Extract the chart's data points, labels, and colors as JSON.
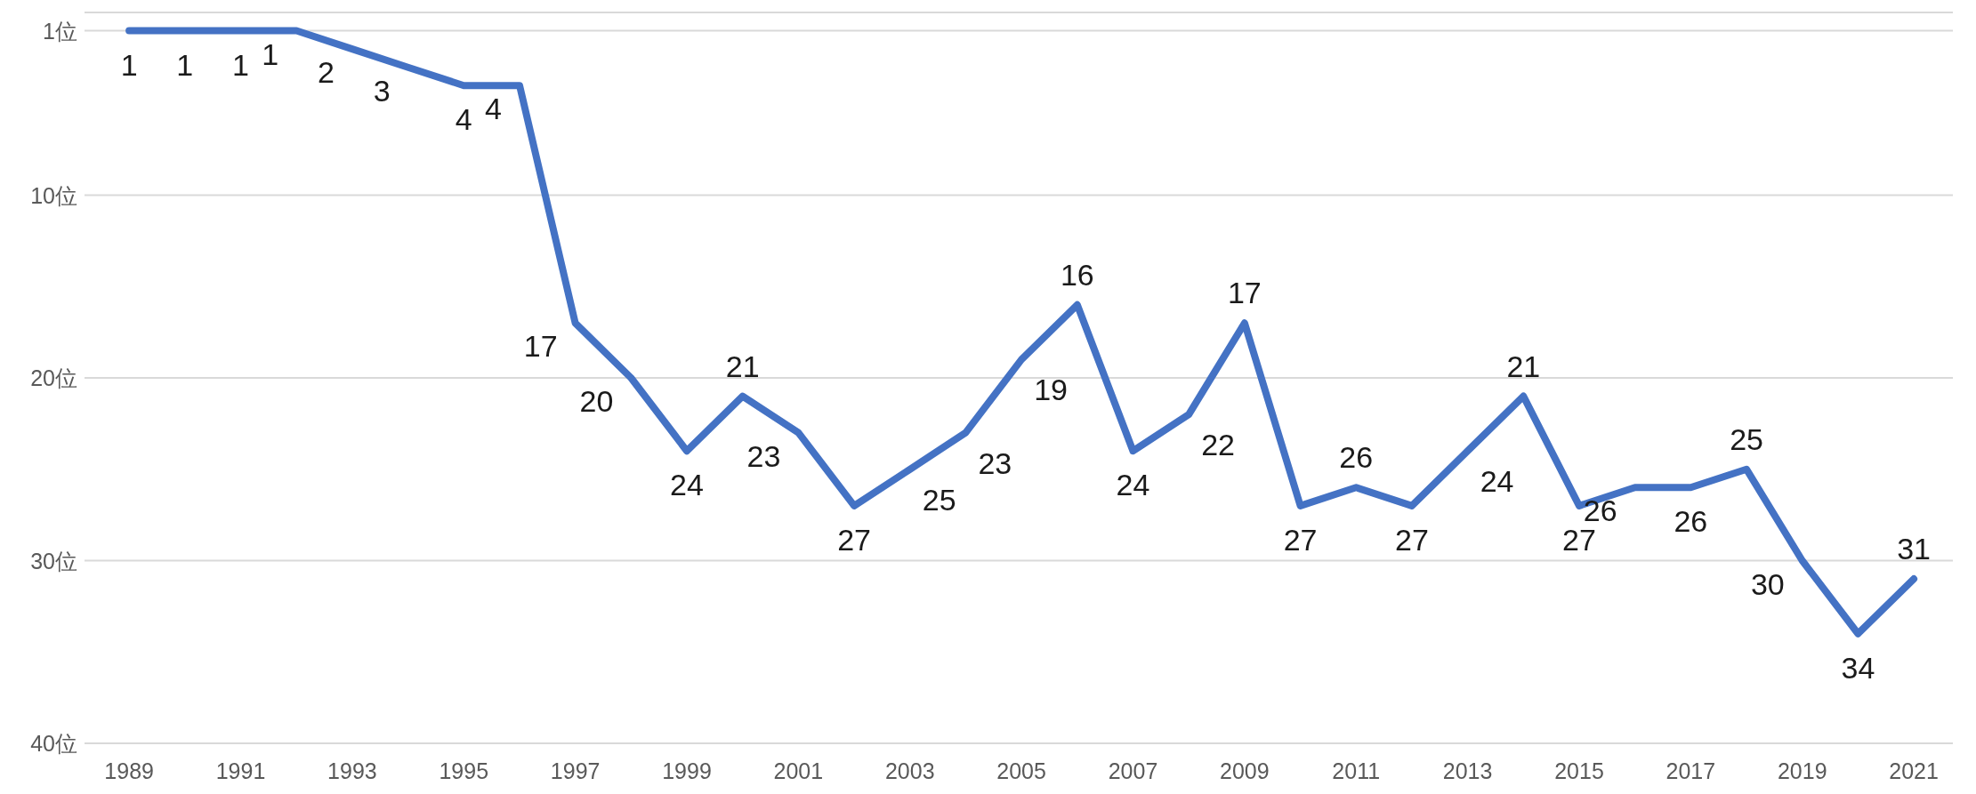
{
  "chart_data": {
    "type": "line",
    "x": [
      1989,
      1990,
      1991,
      1992,
      1993,
      1994,
      1995,
      1996,
      1997,
      1998,
      1999,
      2000,
      2001,
      2002,
      2003,
      2004,
      2005,
      2006,
      2007,
      2008,
      2009,
      2010,
      2011,
      2012,
      2013,
      2014,
      2015,
      2016,
      2017,
      2018,
      2019,
      2020,
      2021
    ],
    "series": [
      {
        "color": "#4472c4",
        "values": [
          1,
          1,
          1,
          1,
          2,
          3,
          4,
          4,
          17,
          20,
          24,
          21,
          23,
          27,
          25,
          23,
          19,
          16,
          24,
          22,
          17,
          27,
          26,
          27,
          24,
          21,
          27,
          26,
          26,
          25,
          30,
          34,
          31
        ]
      }
    ],
    "xlim": [
      1988.2,
      2021.7
    ],
    "xticks": [
      1989,
      1991,
      1993,
      1995,
      1997,
      1999,
      2001,
      2003,
      2005,
      2007,
      2009,
      2011,
      2013,
      2015,
      2017,
      2019,
      2021
    ],
    "ylim": [
      40,
      0
    ],
    "yticks": [
      {
        "value": 0,
        "label": null
      },
      {
        "value": 1,
        "label": "1位"
      },
      {
        "value": 10,
        "label": "10位"
      },
      {
        "value": 20,
        "label": "20位"
      },
      {
        "value": 30,
        "label": "30位"
      },
      {
        "value": 40,
        "label": "40位"
      }
    ],
    "grid": "y",
    "data_labels": true
  }
}
